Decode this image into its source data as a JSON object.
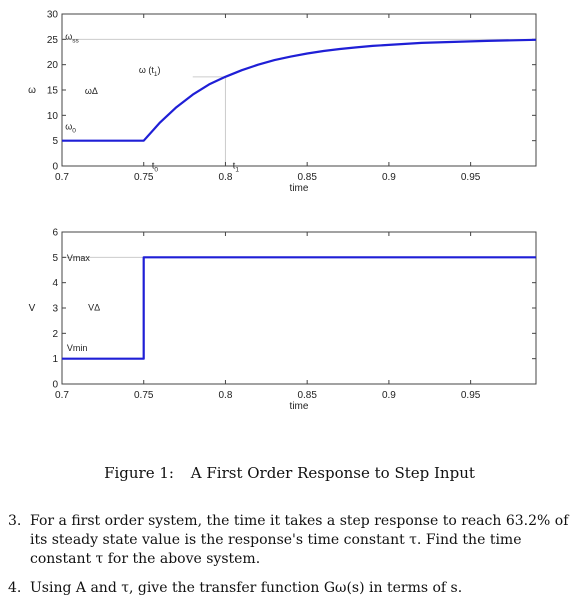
{
  "chart_data": [
    {
      "type": "line",
      "ylabel": "ω",
      "xlabel": "time",
      "xlim": [
        0.7,
        0.99
      ],
      "ylim": [
        0,
        30
      ],
      "xticks": [
        0.7,
        0.75,
        0.8,
        0.85,
        0.9,
        0.95
      ],
      "xtick_labels": [
        "0.7",
        "0.75",
        "0.8",
        "0.85",
        "0.9",
        "0.95"
      ],
      "yticks": [
        0,
        5,
        10,
        15,
        20,
        25,
        30
      ],
      "ytick_labels": [
        "0",
        "5",
        "10",
        "15",
        "20",
        "25",
        "30"
      ],
      "series": [
        {
          "color": "#1f1fd6",
          "x": [
            0.7,
            0.75,
            0.76,
            0.77,
            0.78,
            0.79,
            0.8,
            0.81,
            0.82,
            0.83,
            0.84,
            0.85,
            0.86,
            0.87,
            0.88,
            0.89,
            0.9,
            0.92,
            0.94,
            0.96,
            0.99
          ],
          "y": [
            5,
            5,
            8.6,
            11.6,
            14.1,
            16.1,
            17.6,
            18.9,
            20.0,
            20.9,
            21.6,
            22.2,
            22.7,
            23.1,
            23.4,
            23.7,
            23.9,
            24.3,
            24.5,
            24.7,
            24.9
          ]
        }
      ],
      "reference_lines": [
        {
          "orientation": "horizontal",
          "y": 25,
          "x_from": 0.7,
          "x_to": 0.99,
          "color": "#cccccc"
        },
        {
          "orientation": "horizontal",
          "y": 17.6,
          "x_from": 0.78,
          "x_to": 0.8,
          "color": "#cccccc"
        },
        {
          "orientation": "vertical",
          "x": 0.8,
          "y_from": 0,
          "y_to": 17.6,
          "color": "#cccccc"
        }
      ],
      "annotations": [
        {
          "text": "ω",
          "sub": "ss",
          "x": 0.702,
          "y": 25
        },
        {
          "text": "ω (t",
          "sub": "1",
          "after": ")",
          "x": 0.747,
          "y": 18.4
        },
        {
          "text": "ωΔ",
          "x": 0.714,
          "y": 14.2
        },
        {
          "text": "ω",
          "sub": "0",
          "x": 0.702,
          "y": 7.2
        },
        {
          "text": "t",
          "sub": "0",
          "x": 0.755,
          "y": -0.5
        },
        {
          "text": "t",
          "sub": "1",
          "x": 0.8045,
          "y": -0.5
        }
      ]
    },
    {
      "type": "line",
      "ylabel": "V",
      "xlabel": "time",
      "xlim": [
        0.7,
        0.99
      ],
      "ylim": [
        0,
        6
      ],
      "xticks": [
        0.7,
        0.75,
        0.8,
        0.85,
        0.9,
        0.95
      ],
      "xtick_labels": [
        "0.7",
        "0.75",
        "0.8",
        "0.85",
        "0.9",
        "0.95"
      ],
      "yticks": [
        0,
        1,
        2,
        3,
        4,
        5,
        6
      ],
      "ytick_labels": [
        "0",
        "1",
        "2",
        "3",
        "4",
        "5",
        "6"
      ],
      "series": [
        {
          "color": "#1f1fd6",
          "x": [
            0.7,
            0.75,
            0.75,
            0.99
          ],
          "y": [
            1,
            1,
            5,
            5
          ]
        }
      ],
      "reference_lines": [
        {
          "orientation": "horizontal",
          "y": 5,
          "x_from": 0.7,
          "x_to": 0.75,
          "color": "#cccccc"
        }
      ],
      "annotations": [
        {
          "text": "Vmax",
          "x": 0.703,
          "y": 4.85
        },
        {
          "text": "VΔ",
          "x": 0.716,
          "y": 2.9
        },
        {
          "text": "Vmin",
          "x": 0.703,
          "y": 1.3
        }
      ]
    }
  ],
  "caption": {
    "number": "Figure 1:",
    "text": "A First Order Response to Step Input"
  },
  "questions": [
    {
      "number": "3.",
      "text": "For a first order system, the time it takes a step response to reach 63.2% of its steady state value is the response's time constant τ. Find the time constant τ for the above system."
    },
    {
      "number": "4.",
      "text": "Using A and τ, give the transfer function Gω(s) in terms of s."
    }
  ]
}
